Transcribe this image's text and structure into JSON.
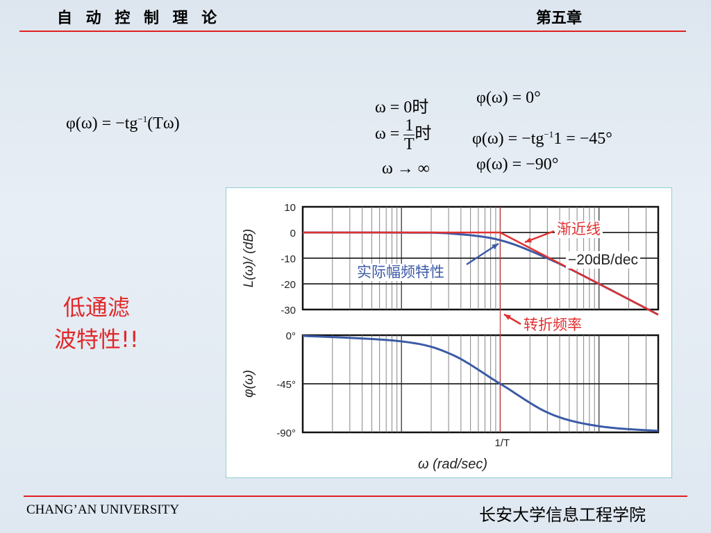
{
  "header": {
    "course_title": "自 动 控 制 理 论",
    "chapter": "第五章"
  },
  "formulas": {
    "main": {
      "lhs": "φ(ω) = −tg",
      "sup": "−1",
      "rhs": "(Tω)"
    },
    "cases": [
      {
        "cond": "ω = 0时",
        "result": "φ(ω) = 0°"
      },
      {
        "cond_left": "ω =",
        "frac_num": "1",
        "frac_den": "T",
        "cond_right": "时",
        "result_lhs": "φ(ω) = −tg",
        "result_sup": "−1",
        "result_rhs": "1 = −45°"
      },
      {
        "cond": "ω → ∞",
        "result": "φ(ω) = −90°"
      }
    ]
  },
  "note": {
    "line1": "低通滤",
    "line2": "波特性!!"
  },
  "footer": {
    "left": "CHANG’AN UNIVERSITY",
    "right": "长安大学信息工程学院"
  },
  "colors": {
    "accent_red": "#e02020",
    "actual_curve": "#3c5aa6",
    "asymptote": "#e03030",
    "corner_line": "#c04040"
  },
  "chart_data": [
    {
      "type": "line",
      "title": "",
      "xlabel": "",
      "ylabel": "L(ω)/ (dB)",
      "x_scale": "log",
      "x_decades": [
        -2,
        1.6
      ],
      "corner_x_label": "1/T",
      "ylim": [
        -30,
        10
      ],
      "yticks": [
        "10",
        "0",
        "-10",
        "-20",
        "-30"
      ],
      "grid": true,
      "series": [
        {
          "name": "渐近线",
          "points": [
            [
              -2,
              0
            ],
            [
              0,
              0
            ],
            [
              1.6,
              -32
            ]
          ]
        },
        {
          "name": "实际幅频特性",
          "points": [
            [
              -2,
              0
            ],
            [
              -1,
              -0.04
            ],
            [
              -0.5,
              -0.41
            ],
            [
              0,
              -3
            ],
            [
              0.5,
              -10.4
            ],
            [
              1,
              -20
            ],
            [
              1.6,
              -32
            ]
          ]
        }
      ],
      "annotations": [
        "渐近线",
        "−20dB/dec",
        "实际幅频特性",
        "转折频率"
      ]
    },
    {
      "type": "line",
      "title": "",
      "xlabel": "ω  (rad/sec)",
      "ylabel": "φ(ω)",
      "x_scale": "log",
      "x_decades": [
        -2,
        1.6
      ],
      "corner_x_label": "1/T",
      "ylim": [
        -90,
        0
      ],
      "yticks": [
        "0°",
        "-45°",
        "-90°"
      ],
      "grid": true,
      "series": [
        {
          "name": "",
          "points": [
            [
              -2,
              -0.6
            ],
            [
              -1,
              -5.7
            ],
            [
              -0.5,
              -17.5
            ],
            [
              0,
              -45
            ],
            [
              0.5,
              -72.5
            ],
            [
              1,
              -84.3
            ],
            [
              1.6,
              -88.6
            ]
          ]
        }
      ]
    }
  ]
}
